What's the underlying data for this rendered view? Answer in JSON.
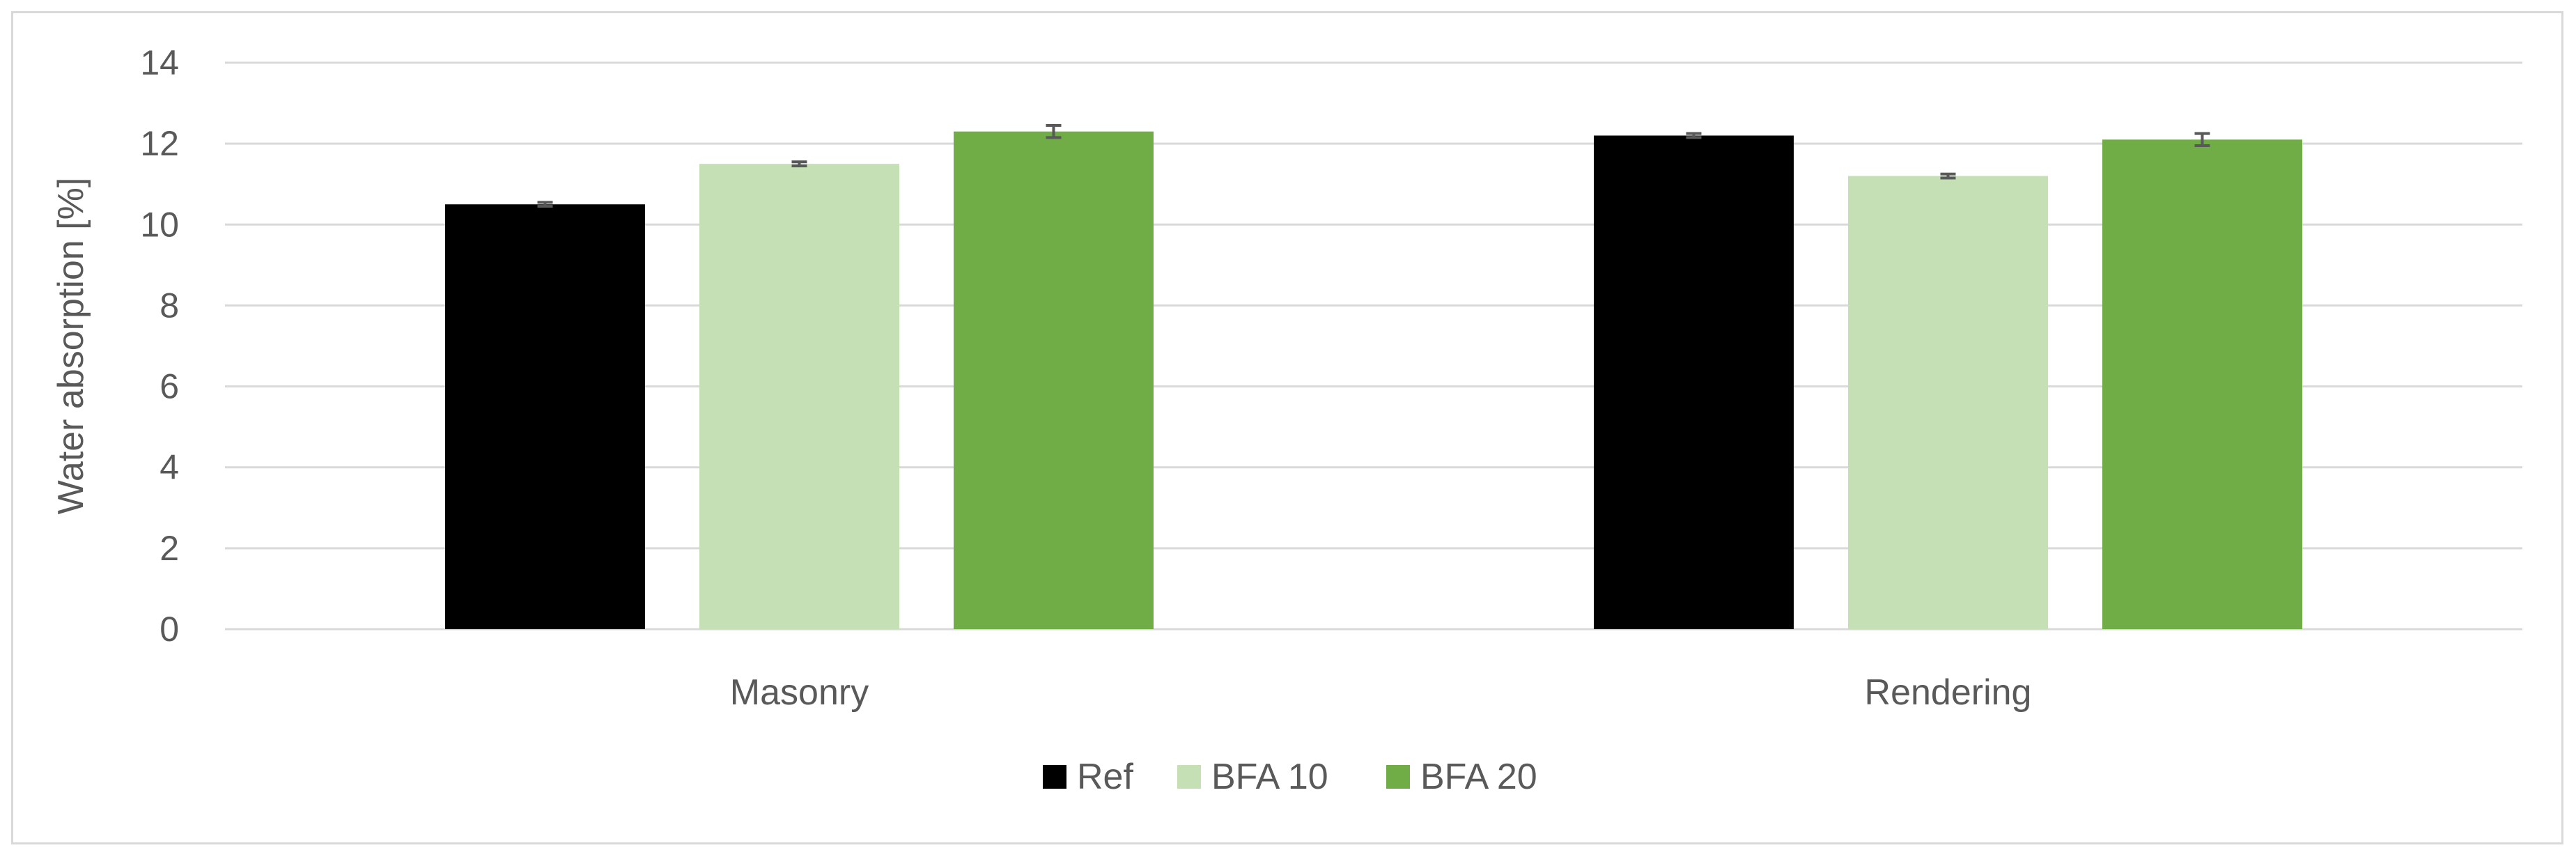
{
  "chart_data": {
    "type": "bar",
    "title": "",
    "xlabel": "",
    "ylabel": "Water absorption [%]",
    "ylim": [
      0,
      14
    ],
    "yticks": [
      0,
      2,
      4,
      6,
      8,
      10,
      12,
      14
    ],
    "grid": true,
    "legend_position": "bottom-center",
    "categories": [
      "Masonry",
      "Rendering"
    ],
    "series": [
      {
        "name": "Ref",
        "color": "#000000",
        "values": [
          10.5,
          12.2
        ],
        "errors": [
          0.05,
          0.05
        ]
      },
      {
        "name": "BFA 10",
        "color": "#c5e0b4",
        "values": [
          11.5,
          11.2
        ],
        "errors": [
          0.05,
          0.05
        ]
      },
      {
        "name": "BFA 20",
        "color": "#70ad47",
        "values": [
          12.3,
          12.1
        ],
        "errors": [
          0.15,
          0.15
        ]
      }
    ]
  }
}
